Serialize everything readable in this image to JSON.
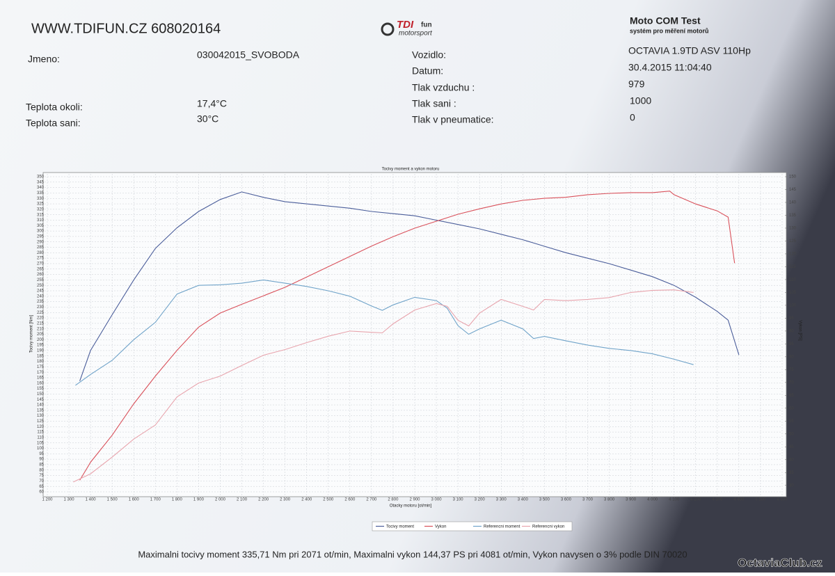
{
  "header": {
    "site": "WWW.TDIFUN.CZ 608020164",
    "logo": {
      "brand": "TDI",
      "brand_suffix": "fun",
      "tagline": "motorsport"
    },
    "system": {
      "title": "Moto COM Test",
      "subtitle": "systém pro měření motorů"
    }
  },
  "fields": [
    {
      "label": "Jmeno:",
      "value": "030042015_SVOBODA"
    },
    {
      "label": "Teplota okoli:",
      "value": "17,4°C"
    },
    {
      "label": "Teplota sani:",
      "value": "30°C"
    },
    {
      "label": "Vozidlo:",
      "value": "OCTAVIA 1.9TD ASV 110Hp"
    },
    {
      "label": "Datum:",
      "value": "30.4.2015 11:04:40"
    },
    {
      "label": "Tlak vzduchu :",
      "value": "979"
    },
    {
      "label": "Tlak sani :",
      "value": "1000"
    },
    {
      "label": "Tlak v pneumatice:",
      "value": "0"
    }
  ],
  "chart_data": {
    "type": "line",
    "title": "Tocivy moment a vykon motoru",
    "x_label": "Otacky motoru [ot/min]",
    "y_label": "Tocivy moment [Nm]",
    "y2_label": "Vykon [PS]",
    "grid": true,
    "xlim": [
      1200,
      4600
    ],
    "ylim": [
      60,
      350
    ],
    "y2lim": [
      27.5,
      150
    ],
    "xticks": [
      {
        "value": 1200,
        "label": "1 200"
      },
      {
        "value": 1300,
        "label": "1 300"
      },
      {
        "value": 1400,
        "label": "1 400"
      },
      {
        "value": 1500,
        "label": "1 500"
      },
      {
        "value": 1600,
        "label": "1 600"
      },
      {
        "value": 1700,
        "label": "1 700"
      },
      {
        "value": 1800,
        "label": "1 800"
      },
      {
        "value": 1900,
        "label": "1 900"
      },
      {
        "value": 2000,
        "label": "2 000"
      },
      {
        "value": 2100,
        "label": "2 100"
      },
      {
        "value": 2200,
        "label": "2 200"
      },
      {
        "value": 2300,
        "label": "2 300"
      },
      {
        "value": 2400,
        "label": "2 400"
      },
      {
        "value": 2500,
        "label": "2 500"
      },
      {
        "value": 2600,
        "label": "2 600"
      },
      {
        "value": 2700,
        "label": "2 700"
      },
      {
        "value": 2800,
        "label": "2 800"
      },
      {
        "value": 2900,
        "label": "2 900"
      },
      {
        "value": 3000,
        "label": "3 000"
      },
      {
        "value": 3100,
        "label": "3 100"
      },
      {
        "value": 3200,
        "label": "3 200"
      },
      {
        "value": 3300,
        "label": "3 300"
      },
      {
        "value": 3400,
        "label": "3 400"
      },
      {
        "value": 3500,
        "label": "3 500"
      },
      {
        "value": 3600,
        "label": "3 600"
      },
      {
        "value": 3700,
        "label": "3 700"
      },
      {
        "value": 3800,
        "label": "3 800"
      },
      {
        "value": 3900,
        "label": "3 900"
      },
      {
        "value": 4000,
        "label": "4 000"
      },
      {
        "value": 4100,
        "label": "4 100"
      },
      {
        "value": 4200,
        "label": "4 200"
      },
      {
        "value": 4300,
        "label": "4 300"
      },
      {
        "value": 4400,
        "label": "4 400"
      },
      {
        "value": 4500,
        "label": "4 500"
      },
      {
        "value": 4600,
        "label": "4 600"
      }
    ],
    "yticks": [
      60,
      65,
      70,
      75,
      80,
      85,
      90,
      95,
      100,
      105,
      110,
      115,
      120,
      125,
      130,
      135,
      140,
      145,
      150,
      155,
      160,
      165,
      170,
      175,
      180,
      185,
      190,
      195,
      200,
      205,
      210,
      215,
      220,
      225,
      230,
      235,
      240,
      245,
      250,
      255,
      260,
      265,
      270,
      275,
      280,
      285,
      290,
      295,
      300,
      305,
      310,
      315,
      320,
      325,
      330,
      335,
      340,
      345,
      350
    ],
    "y2ticks": [
      30,
      35,
      40,
      45,
      50,
      55,
      60,
      65,
      70,
      75,
      80,
      85,
      90,
      95,
      100,
      105,
      110,
      115,
      120,
      125,
      130,
      135,
      140,
      145,
      150
    ],
    "series": [
      {
        "name": "Tocivy moment",
        "color": "#4a5d9a",
        "axis": "y",
        "x": [
          1350,
          1400,
          1500,
          1600,
          1700,
          1800,
          1900,
          2000,
          2100,
          2200,
          2300,
          2400,
          2500,
          2600,
          2700,
          2800,
          2900,
          3000,
          3100,
          3200,
          3300,
          3400,
          3500,
          3600,
          3700,
          3800,
          3900,
          4000,
          4100,
          4200,
          4300,
          4350,
          4400
        ],
        "values": [
          162,
          190,
          223,
          255,
          284,
          303,
          318,
          329,
          336,
          331,
          327,
          325,
          323,
          321,
          318,
          316,
          314,
          310,
          306,
          302,
          297,
          292,
          286,
          280,
          275,
          270,
          264,
          258,
          250,
          239,
          226,
          218,
          186
        ]
      },
      {
        "name": "Vykon",
        "color": "#d9505a",
        "axis": "y2",
        "x": [
          1350,
          1400,
          1500,
          1600,
          1700,
          1800,
          1900,
          2000,
          2100,
          2200,
          2300,
          2400,
          2500,
          2600,
          2700,
          2800,
          2900,
          3000,
          3100,
          3200,
          3300,
          3400,
          3500,
          3600,
          3700,
          3800,
          3900,
          4000,
          4080,
          4100,
          4200,
          4300,
          4350,
          4380
        ],
        "values": [
          32,
          39,
          49.5,
          61.7,
          72.5,
          82.5,
          91.5,
          97,
          100.4,
          103.7,
          107,
          111,
          115,
          119,
          123,
          126.7,
          130,
          132.7,
          135.4,
          137.5,
          139.4,
          140.8,
          141.6,
          142,
          143,
          143.5,
          143.8,
          143.8,
          144.4,
          143,
          139.4,
          136.7,
          134.3,
          116.4
        ]
      },
      {
        "name": "Referencni moment",
        "color": "#6fa3c9",
        "axis": "y",
        "x": [
          1330,
          1400,
          1500,
          1600,
          1700,
          1800,
          1900,
          2000,
          2100,
          2200,
          2300,
          2400,
          2500,
          2600,
          2700,
          2750,
          2800,
          2900,
          3000,
          3050,
          3100,
          3150,
          3200,
          3300,
          3400,
          3450,
          3500,
          3600,
          3700,
          3800,
          3900,
          4000,
          4100,
          4190
        ],
        "values": [
          158,
          168,
          181,
          200,
          216,
          242,
          250,
          250.5,
          252,
          255,
          252,
          249,
          245,
          240,
          231,
          227,
          232,
          239,
          236,
          229,
          213,
          205,
          210,
          218,
          210,
          201,
          203,
          199,
          195,
          192,
          190,
          187,
          182,
          177
        ]
      },
      {
        "name": "Referencni vykon",
        "color": "#e8a4ad",
        "axis": "y2",
        "x": [
          1320,
          1400,
          1500,
          1600,
          1700,
          1800,
          1900,
          2000,
          2100,
          2200,
          2300,
          2400,
          2500,
          2600,
          2700,
          2750,
          2800,
          2900,
          3000,
          3050,
          3100,
          3150,
          3200,
          3300,
          3400,
          3450,
          3500,
          3600,
          3700,
          3800,
          3900,
          4000,
          4100,
          4190
        ],
        "values": [
          31.3,
          34.5,
          41,
          48,
          53.5,
          64.4,
          69.8,
          72.5,
          76.6,
          80.6,
          82.8,
          85.5,
          88,
          90,
          89.5,
          89.3,
          92.8,
          98.2,
          100.7,
          99.6,
          94.2,
          92,
          97,
          102.3,
          99.6,
          98.2,
          102.3,
          101.8,
          102.3,
          103,
          105,
          105.8,
          106,
          105
        ]
      }
    ]
  },
  "footer": "Maximalni tocivy moment 335,71 Nm pri 2071 ot/min,  Maximalni vykon 144,37 PS pri 4081 ot/min,  Vykon navysen o 3% podle DIN 70020",
  "watermark": "OctaviaClub.cz"
}
